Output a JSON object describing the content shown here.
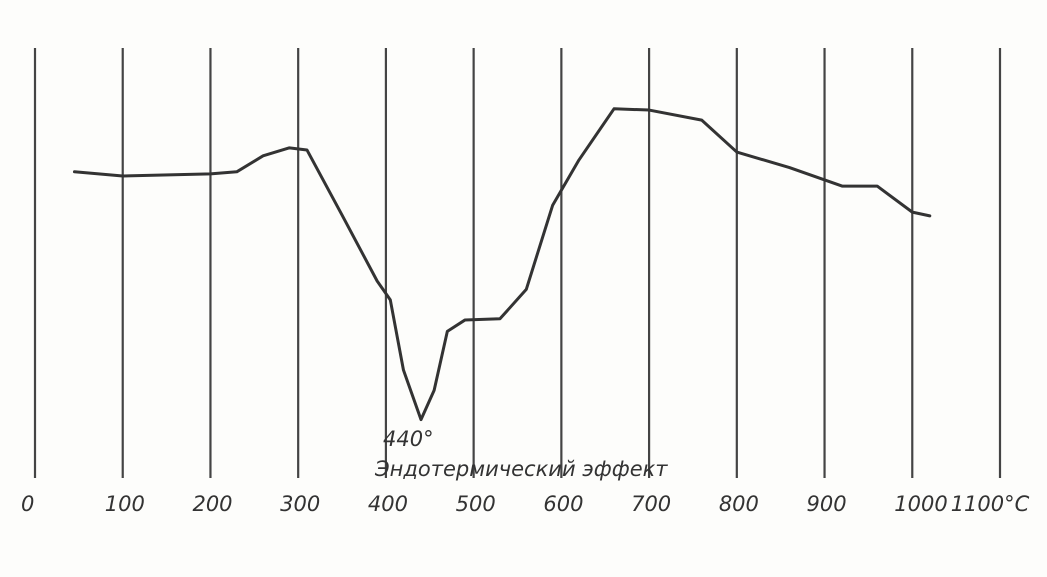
{
  "chart_data": {
    "type": "line",
    "x": [
      45,
      100,
      200,
      230,
      260,
      290,
      310,
      350,
      390,
      405,
      420,
      440,
      455,
      470,
      490,
      530,
      560,
      590,
      620,
      660,
      700,
      760,
      800,
      860,
      920,
      960,
      1000,
      1020
    ],
    "series": [
      {
        "color": "#333333",
        "values": [
          71,
          70,
          70.5,
          71,
          74.8,
          76.7,
          76.2,
          60.7,
          45,
          40.5,
          23.8,
          12,
          19,
          33,
          35.7,
          36,
          43,
          63,
          73.8,
          86,
          85.7,
          83.3,
          75.7,
          72,
          67.6,
          67.6,
          61.4,
          60.5
        ]
      }
    ],
    "xlim": [
      0,
      1100
    ],
    "xticks": [
      0,
      100,
      200,
      300,
      400,
      500,
      600,
      700,
      800,
      900,
      1000,
      {
        "value": 1100,
        "label": "1100°C"
      }
    ],
    "ylim": [
      0,
      100
    ],
    "grid": true,
    "annotations": [
      {
        "x": 440,
        "text": "440°"
      },
      {
        "x": 440,
        "text": "Эндотермический эффект"
      }
    ]
  }
}
